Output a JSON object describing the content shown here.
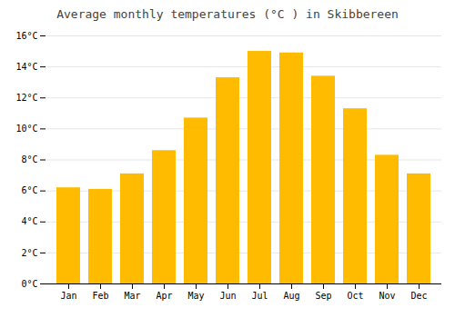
{
  "chart_data": {
    "type": "bar",
    "title": "Average monthly temperatures (°C ) in Skibbereen",
    "categories": [
      "Jan",
      "Feb",
      "Mar",
      "Apr",
      "May",
      "Jun",
      "Jul",
      "Aug",
      "Sep",
      "Oct",
      "Nov",
      "Dec"
    ],
    "values": [
      6.2,
      6.1,
      7.1,
      8.6,
      10.7,
      13.3,
      15.0,
      14.9,
      13.4,
      11.3,
      8.3,
      7.1
    ],
    "color": "#FFBB00",
    "ylim": [
      0,
      16
    ],
    "yticks": [
      {
        "value": 0,
        "label": "0°C"
      },
      {
        "value": 2,
        "label": "2°C"
      },
      {
        "value": 4,
        "label": "4°C"
      },
      {
        "value": 6,
        "label": "6°C"
      },
      {
        "value": 8,
        "label": "8°C"
      },
      {
        "value": 10,
        "label": "10°C"
      },
      {
        "value": 12,
        "label": "12°C"
      },
      {
        "value": 14,
        "label": "14°C"
      },
      {
        "value": 16,
        "label": "16°C"
      }
    ],
    "grid": true
  }
}
